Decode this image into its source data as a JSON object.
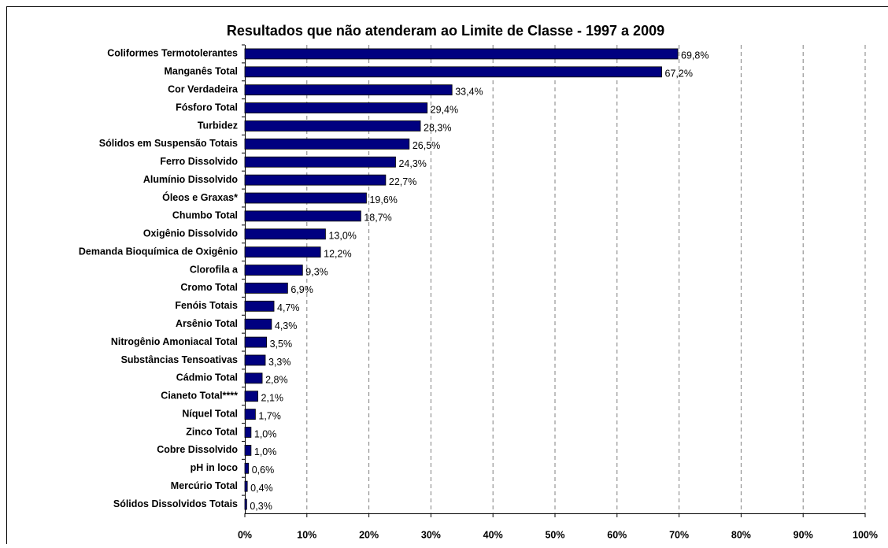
{
  "chart_data": {
    "type": "bar",
    "orientation": "horizontal",
    "title": "Resultados que não atenderam ao Limite de Classe - 1997 a 2009",
    "categories": [
      "Coliformes Termotolerantes",
      "Manganês Total",
      "Cor Verdadeira",
      "Fósforo Total",
      "Turbidez",
      "Sólidos em Suspensão Totais",
      "Ferro Dissolvido",
      "Alumínio Dissolvido",
      "Óleos e Graxas*",
      "Chumbo Total",
      "Oxigênio Dissolvido",
      "Demanda Bioquímica de Oxigênio",
      "Clorofila a",
      "Cromo Total",
      "Fenóis Totais",
      "Arsênio Total",
      "Nitrogênio Amoniacal Total",
      "Substâncias Tensoativas",
      "Cádmio Total",
      "Cianeto Total****",
      "Níquel Total",
      "Zinco Total",
      "Cobre Dissolvido",
      "pH in loco",
      "Mercúrio Total",
      "Sólidos Dissolvidos Totais"
    ],
    "values": [
      69.8,
      67.2,
      33.4,
      29.4,
      28.3,
      26.5,
      24.3,
      22.7,
      19.6,
      18.7,
      13.0,
      12.2,
      9.3,
      6.9,
      4.7,
      4.3,
      3.5,
      3.3,
      2.8,
      2.1,
      1.7,
      1.0,
      1.0,
      0.6,
      0.4,
      0.3
    ],
    "value_labels": [
      "69,8%",
      "67,2%",
      "33,4%",
      "29,4%",
      "28,3%",
      "26,5%",
      "24,3%",
      "22,7%",
      "19,6%",
      "18,7%",
      "13,0%",
      "12,2%",
      "9,3%",
      "6,9%",
      "4,7%",
      "4,3%",
      "3,5%",
      "3,3%",
      "2,8%",
      "2,1%",
      "1,7%",
      "1,0%",
      "1,0%",
      "0,6%",
      "0,4%",
      "0,3%"
    ],
    "color": "#000080",
    "xlim": [
      0,
      100
    ],
    "xticks": [
      {
        "value": 0,
        "label": "0%"
      },
      {
        "value": 10,
        "label": "10%"
      },
      {
        "value": 20,
        "label": "20%"
      },
      {
        "value": 30,
        "label": "30%"
      },
      {
        "value": 40,
        "label": "40%"
      },
      {
        "value": 50,
        "label": "50%"
      },
      {
        "value": 60,
        "label": "60%"
      },
      {
        "value": 70,
        "label": "70%"
      },
      {
        "value": 80,
        "label": "80%"
      },
      {
        "value": 90,
        "label": "90%"
      },
      {
        "value": 100,
        "label": "100%"
      }
    ],
    "grid": true
  }
}
